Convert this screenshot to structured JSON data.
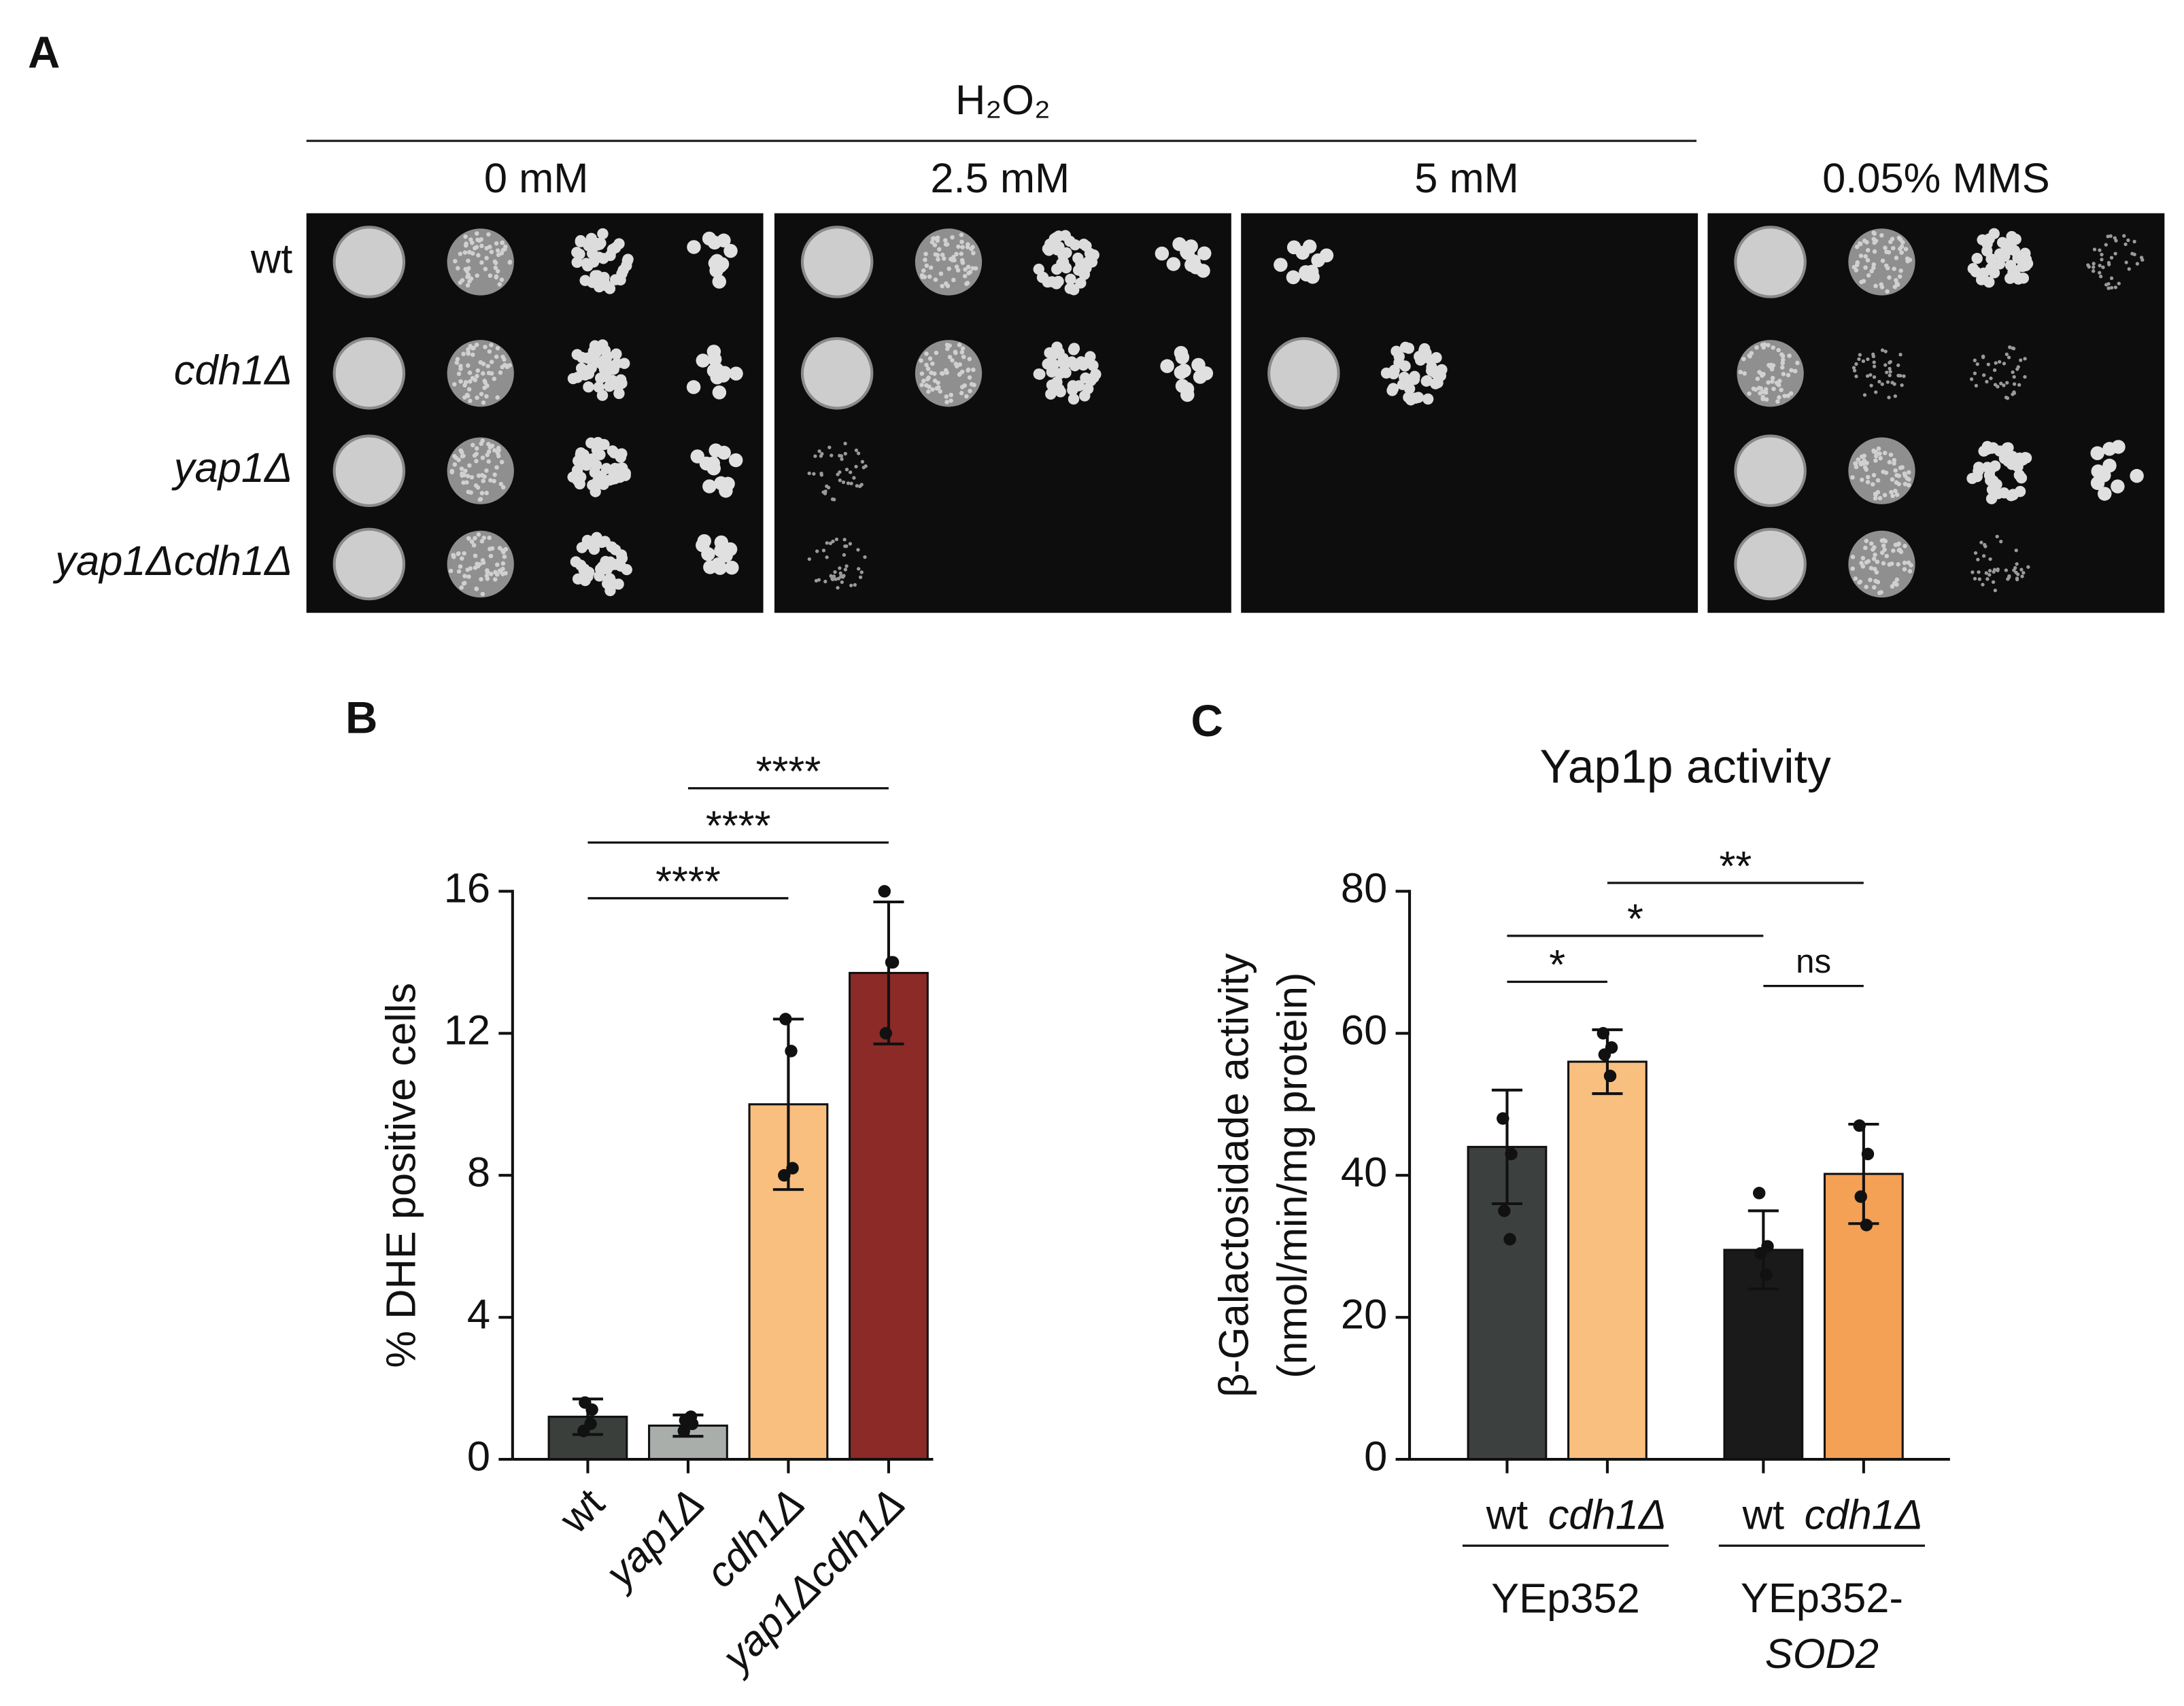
{
  "panel_a": {
    "label": "A",
    "treatment": "H₂O₂",
    "conditions": [
      "0 mM",
      "2.5 mM",
      "5 mM",
      "0.05% MMS"
    ],
    "strains": [
      "wt",
      "cdh1Δ",
      "yap1Δ",
      "yap1Δcdh1Δ"
    ]
  },
  "chart_data": [
    {
      "type": "bar",
      "label": "B",
      "ylabel": "% DHE positive cells",
      "categories": [
        "wt",
        "yap1Δ",
        "cdh1Δ",
        "yap1Δcdh1Δ"
      ],
      "values": [
        1.2,
        0.95,
        10.0,
        13.7
      ],
      "errors": [
        0.5,
        0.3,
        2.4,
        2.0
      ],
      "points": [
        [
          0.8,
          1.4,
          1.6,
          1.0
        ],
        [
          0.8,
          1.0,
          1.1,
          1.2
        ],
        [
          8.0,
          8.2,
          12.4,
          11.5
        ],
        [
          16.0,
          14.0,
          12.0,
          14.0
        ]
      ],
      "colors": [
        "#3a3f3c",
        "#a9aeab",
        "#f8bf7f",
        "#8b2a26"
      ],
      "ylim": [
        0,
        16
      ],
      "yticks": [
        0,
        4,
        8,
        12,
        16
      ],
      "comparisons": [
        {
          "pair": [
            0,
            2
          ],
          "label": "****"
        },
        {
          "pair": [
            0,
            3
          ],
          "label": "****"
        },
        {
          "pair": [
            1,
            3
          ],
          "label": "****"
        }
      ]
    },
    {
      "type": "bar",
      "label": "C",
      "title": "Yap1p activity",
      "ylabel": [
        "β-Galactosidade activity",
        "(nmol/min/mg protein)"
      ],
      "categories": [
        "wt",
        "cdh1Δ",
        "wt",
        "cdh1Δ"
      ],
      "groups": [
        "YEp352",
        "YEp352-SOD2"
      ],
      "values": [
        44,
        56,
        29.5,
        40.2
      ],
      "errors": [
        8,
        4.5,
        5.5,
        7
      ],
      "points": [
        [
          48,
          43,
          35,
          31
        ],
        [
          60,
          58,
          57,
          54
        ],
        [
          37.5,
          30,
          29,
          26
        ],
        [
          47,
          43,
          37,
          33
        ]
      ],
      "colors": [
        "#3c403e",
        "#f8bf7f",
        "#1a1a1a",
        "#f4a055"
      ],
      "ylim": [
        0,
        80
      ],
      "yticks": [
        0,
        20,
        40,
        60,
        80
      ],
      "comparisons": [
        {
          "pair": [
            0,
            1
          ],
          "label": "*"
        },
        {
          "pair": [
            0,
            2
          ],
          "label": "*"
        },
        {
          "pair": [
            1,
            3
          ],
          "label": "**"
        },
        {
          "pair": [
            2,
            3
          ],
          "label": "ns"
        }
      ]
    }
  ]
}
